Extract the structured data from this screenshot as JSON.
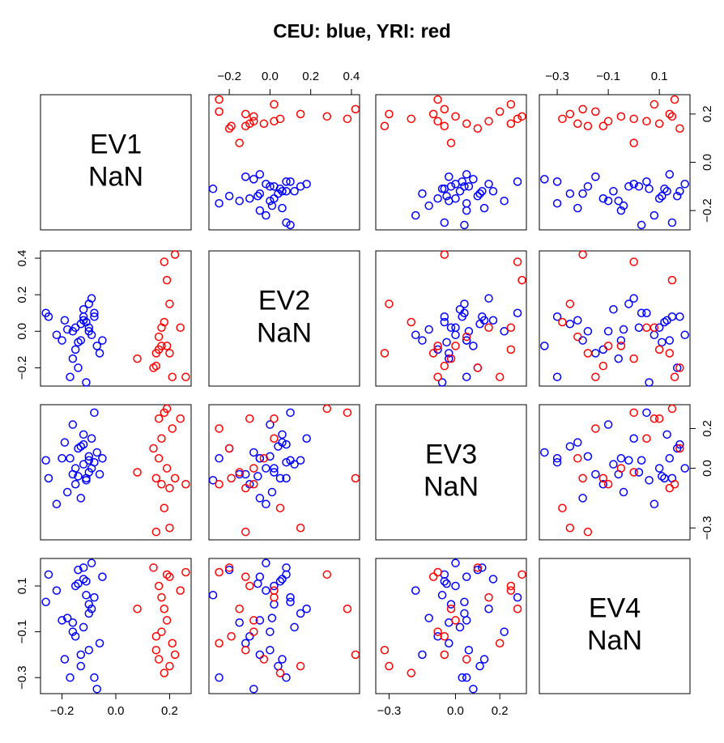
{
  "chart_data": {
    "type": "scatter-matrix",
    "title": "CEU: blue, YRI: red",
    "variables": [
      {
        "label": "EV1",
        "stat": "NaN",
        "lim": [
          -0.28,
          0.28
        ],
        "ticks": [
          {
            "value": -0.2,
            "label": "−0.2"
          },
          {
            "value": 0,
            "label": "0.0"
          },
          0.2
        ]
      },
      {
        "label": "EV2",
        "stat": "NaN",
        "lim": [
          -0.3,
          0.44
        ],
        "ticks": [
          {
            "value": -0.2,
            "label": "−0.2"
          },
          {
            "value": 0,
            "label": "0.0"
          },
          0.2,
          0.4
        ]
      },
      {
        "label": "EV3",
        "stat": "NaN",
        "lim": [
          -0.36,
          0.32
        ],
        "ticks": [
          {
            "value": -0.3,
            "label": "−0.3"
          },
          {
            "value": 0,
            "label": "0.0"
          },
          0.2
        ]
      },
      {
        "label": "EV4",
        "stat": "NaN",
        "lim": [
          -0.37,
          0.22
        ],
        "ticks": [
          {
            "value": -0.3,
            "label": "−0.3"
          },
          {
            "value": -0.1,
            "label": "−0.1"
          },
          0.1
        ]
      }
    ],
    "groups": [
      {
        "color": "#0000ff",
        "values": [
          [
            -0.2,
            -0.05,
            0.05,
            -0.05
          ],
          [
            -0.12,
            0.08,
            0.12,
            0.18
          ],
          [
            -0.1,
            0.15,
            0.04,
            -0.02
          ],
          [
            -0.15,
            0.02,
            0.0,
            0.1
          ],
          [
            -0.25,
            0.08,
            -0.05,
            0.15
          ],
          [
            -0.17,
            -0.25,
            0.05,
            -0.3
          ],
          [
            -0.11,
            0.05,
            -0.05,
            0.12
          ],
          [
            -0.09,
            0.18,
            0.15,
            0.0
          ],
          [
            -0.13,
            -0.05,
            -0.15,
            -0.2
          ],
          [
            -0.16,
            0.0,
            0.22,
            -0.1
          ],
          [
            -0.08,
            0.1,
            0.28,
            0.05
          ],
          [
            -0.06,
            -0.12,
            -0.03,
            -0.15
          ],
          [
            -0.14,
            -0.2,
            0.1,
            0.17
          ],
          [
            -0.19,
            0.06,
            0.13,
            -0.22
          ],
          [
            -0.1,
            0.02,
            -0.02,
            0.02
          ],
          [
            -0.07,
            -0.08,
            0.08,
            -0.35
          ],
          [
            -0.22,
            -0.02,
            -0.18,
            0.08
          ],
          [
            -0.12,
            0.12,
            0.02,
            -0.08
          ],
          [
            -0.09,
            -0.02,
            0.0,
            0.2
          ],
          [
            -0.15,
            -0.1,
            -0.08,
            -0.12
          ],
          [
            -0.05,
            -0.05,
            0.05,
            0.14
          ],
          [
            -0.13,
            0.04,
            0.11,
            -0.25
          ],
          [
            -0.11,
            -0.28,
            -0.06,
            0.06
          ],
          [
            -0.18,
            0.01,
            -0.12,
            -0.04
          ],
          [
            -0.08,
            0.08,
            0.03,
            -0.3
          ],
          [
            -0.26,
            0.1,
            0.04,
            0.03
          ],
          [
            -0.14,
            -0.06,
            -0.04,
            0.11
          ],
          [
            -0.1,
            0.0,
            0.06,
            -0.18
          ],
          [
            -0.16,
            -0.15,
            -0.03,
            -0.06
          ],
          [
            -0.12,
            0.06,
            0.17,
            0.13
          ]
        ]
      },
      {
        "color": "#ff0000",
        "values": [
          [
            0.22,
            0.42,
            -0.05,
            -0.2
          ],
          [
            0.18,
            0.38,
            0.28,
            0.0
          ],
          [
            0.19,
            0.28,
            0.3,
            0.15
          ],
          [
            0.2,
            0.15,
            -0.3,
            -0.25
          ],
          [
            0.08,
            -0.15,
            -0.02,
            0.0
          ],
          [
            0.15,
            -0.12,
            -0.32,
            -0.18
          ],
          [
            0.16,
            -0.1,
            0.25,
            0.1
          ],
          [
            0.17,
            -0.08,
            -0.08,
            -0.1
          ],
          [
            0.14,
            -0.2,
            0.1,
            0.18
          ],
          [
            0.15,
            -0.19,
            -0.05,
            -0.12
          ],
          [
            0.19,
            -0.08,
            0.0,
            -0.05
          ],
          [
            0.21,
            -0.25,
            0.2,
            -0.15
          ],
          [
            0.26,
            -0.25,
            -0.08,
            0.16
          ],
          [
            0.17,
            0.02,
            0.15,
            0.05
          ],
          [
            0.18,
            0.05,
            -0.2,
            -0.28
          ],
          [
            0.24,
            0.02,
            0.25,
            0.08
          ],
          [
            0.2,
            -0.12,
            -0.1,
            0.14
          ],
          [
            0.16,
            -0.03,
            0.05,
            -0.22
          ]
        ]
      }
    ]
  }
}
